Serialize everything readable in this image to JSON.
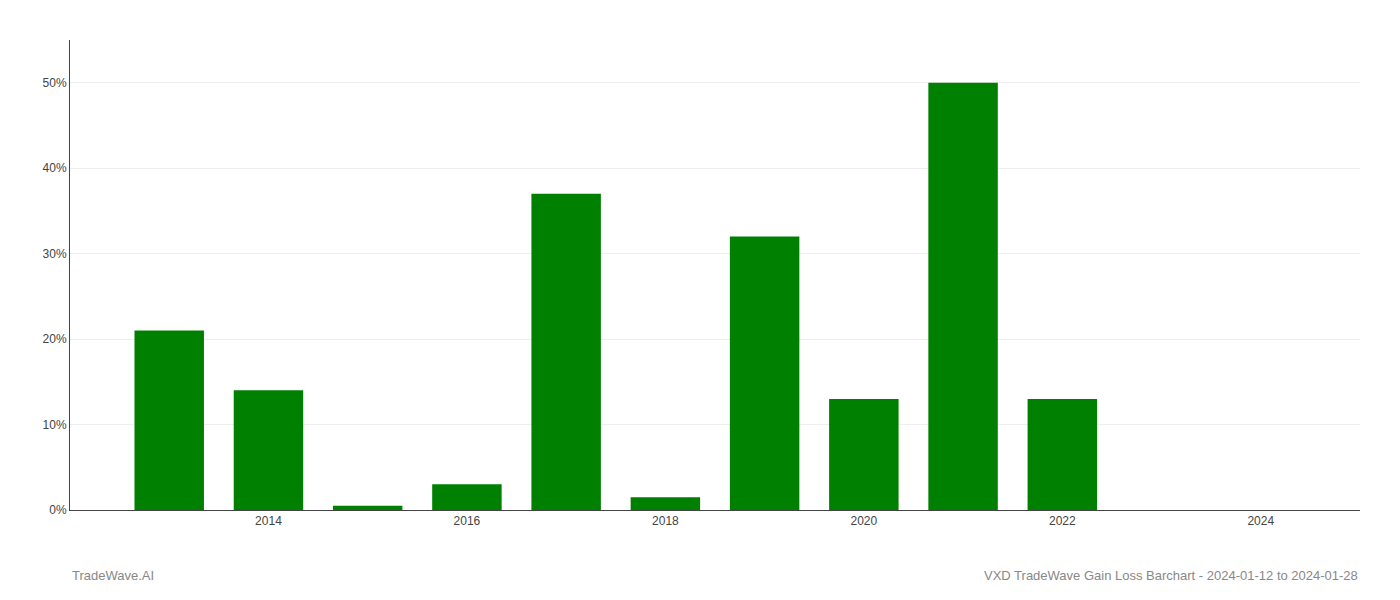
{
  "chart_data": {
    "type": "bar",
    "title": "VXD TradeWave Gain Loss Barchart - 2024-01-12 to 2024-01-28",
    "annotations": [
      "TradeWave.AI"
    ],
    "x": [
      2013,
      2014,
      2015,
      2016,
      2017,
      2018,
      2019,
      2020,
      2021,
      2022,
      2023
    ],
    "values": [
      0.21,
      0.14,
      0.005,
      0.03,
      0.37,
      0.015,
      0.32,
      0.13,
      0.5,
      0.13,
      0.0
    ],
    "color": "#008000",
    "xlim": [
      2012.0,
      2025.0
    ],
    "xticks": [
      2014,
      2016,
      2018,
      2020,
      2022,
      2024
    ],
    "ylim": [
      0,
      0.55
    ],
    "yticks": [
      {
        "value": 0.0,
        "label": "0%"
      },
      {
        "value": 0.1,
        "label": "10%"
      },
      {
        "value": 0.2,
        "label": "20%"
      },
      {
        "value": 0.3,
        "label": "30%"
      },
      {
        "value": 0.4,
        "label": "40%"
      },
      {
        "value": 0.5,
        "label": "50%"
      }
    ],
    "grid": true
  }
}
